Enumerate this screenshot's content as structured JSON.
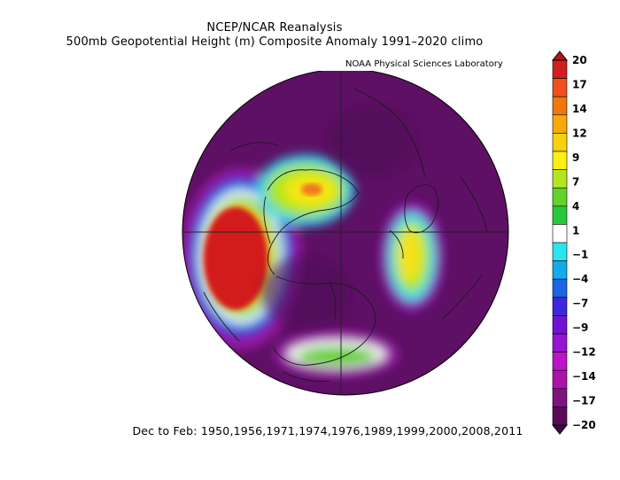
{
  "title": {
    "line1": "NCEP/NCAR Reanalysis",
    "line2": "500mb Geopotential Height (m) Composite Anomaly 1991–2020 climo"
  },
  "credit": "NOAA Physical Sciences Laboratory",
  "caption": "Dec to Feb: 1950,1956,1971,1974,1976,1989,1999,2000,2008,2011",
  "colorbar": {
    "labels": [
      "20",
      "17",
      "14",
      "12",
      "9",
      "7",
      "4",
      "1",
      "-1",
      "-4",
      "-7",
      "-9",
      "-12",
      "-14",
      "-17",
      "-20"
    ],
    "colors": [
      "#d21e1e",
      "#f0501e",
      "#f0780a",
      "#f5aa0a",
      "#f5d20a",
      "#faf014",
      "#b4e61e",
      "#64d228",
      "#28c83c",
      "#ffffff",
      "#28e6f0",
      "#14aaeb",
      "#1e64e6",
      "#3c28dc",
      "#6e14d2",
      "#9614d2",
      "#be14c8",
      "#aa14aa",
      "#7d147d",
      "#5a0a5a"
    ],
    "top_color": "#b41414",
    "bottom_color": "#3c0a3c"
  }
}
